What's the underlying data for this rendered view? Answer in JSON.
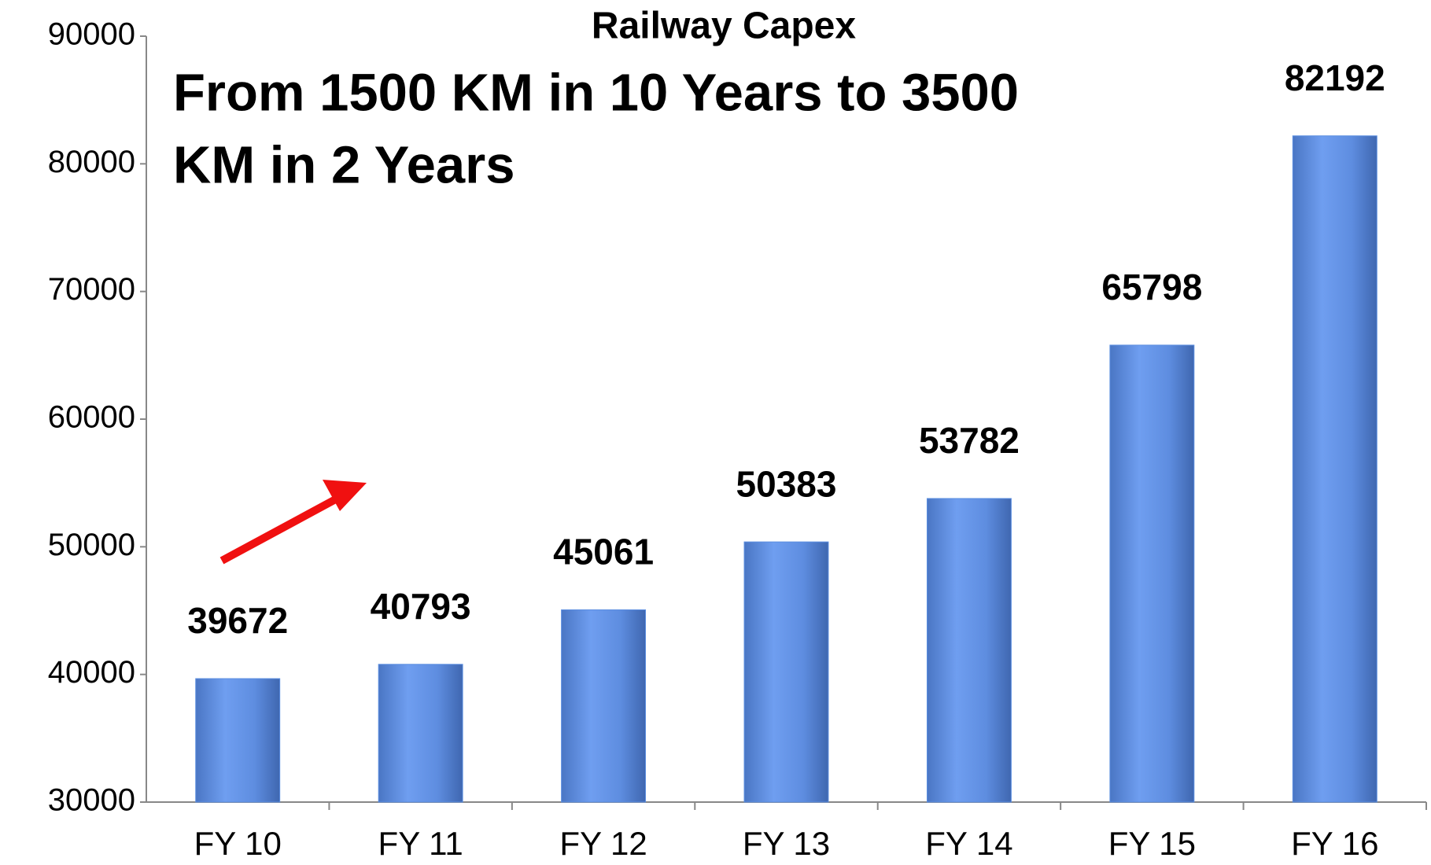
{
  "chart_data": {
    "type": "bar",
    "title": "Railway Capex",
    "annotations": [
      "From 1500 KM in 10 Years to 3500",
      "KM in 2 Years"
    ],
    "categories": [
      "FY 10",
      "FY 11",
      "FY 12",
      "FY 13",
      "FY 14",
      "FY 15",
      "FY 16"
    ],
    "values": [
      39672,
      40793,
      45061,
      50383,
      53782,
      65798,
      82192
    ],
    "color": "#5b8ee0",
    "ylim": [
      30000,
      90000
    ],
    "yticks": [
      30000,
      40000,
      50000,
      60000,
      70000,
      80000,
      90000
    ],
    "grid": false
  }
}
